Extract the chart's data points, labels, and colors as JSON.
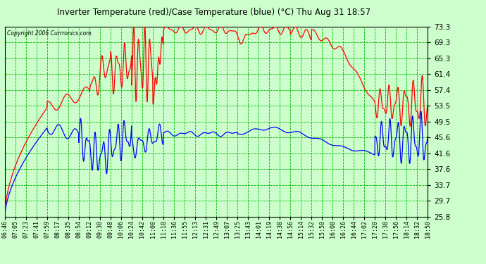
{
  "title": "Inverter Temperature (red)/Case Temperature (blue) (°C) Thu Aug 31 18:57",
  "copyright": "Copyright 2006 Currronics.com",
  "yticks": [
    25.8,
    29.7,
    33.7,
    37.6,
    41.6,
    45.6,
    49.5,
    53.5,
    57.4,
    61.4,
    65.3,
    69.3,
    73.3
  ],
  "ymin": 25.8,
  "ymax": 73.3,
  "bg_color": "#ccffcc",
  "grid_color": "#00bb00",
  "line_red": "#ff0000",
  "line_blue": "#0000ff",
  "title_color": "#000000",
  "xtick_labels": [
    "06:46",
    "07:05",
    "07:23",
    "07:41",
    "07:59",
    "08:17",
    "08:35",
    "08:54",
    "09:12",
    "09:30",
    "09:48",
    "10:06",
    "10:24",
    "10:42",
    "11:00",
    "11:18",
    "11:36",
    "11:55",
    "12:13",
    "12:31",
    "12:49",
    "13:07",
    "13:25",
    "13:43",
    "14:01",
    "14:19",
    "14:38",
    "14:56",
    "15:14",
    "15:32",
    "15:50",
    "16:08",
    "16:26",
    "16:44",
    "17:02",
    "17:20",
    "17:38",
    "17:56",
    "18:14",
    "18:32",
    "18:50"
  ]
}
